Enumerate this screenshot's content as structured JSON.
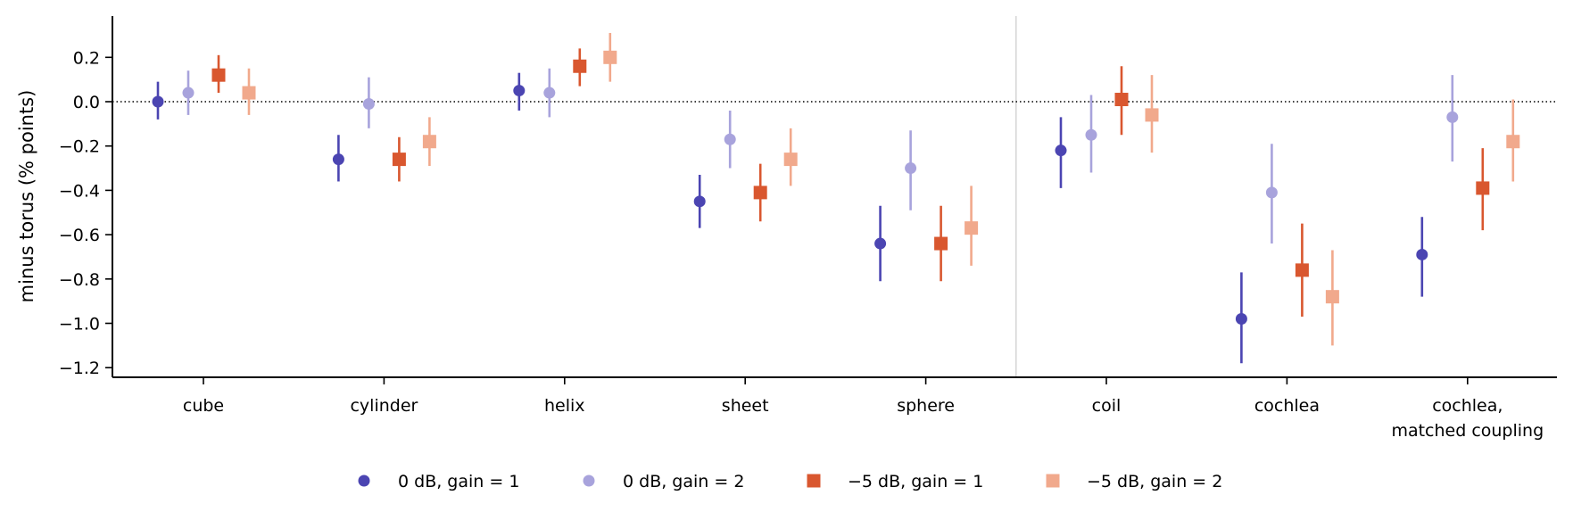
{
  "chart_data": {
    "type": "scatter",
    "title": "",
    "xlabel": "",
    "ylabel": "minus torus (% points)",
    "ylim": [
      -1.24,
      0.38
    ],
    "yticks": [
      -1.2,
      -1.0,
      -0.8,
      -0.6,
      -0.4,
      -0.2,
      0.0,
      0.2
    ],
    "ytick_labels": [
      "−1.2",
      "−1.0",
      "−0.8",
      "−0.6",
      "−0.4",
      "−0.2",
      "0.0",
      "0.2"
    ],
    "categories": [
      "cube",
      "cylinder",
      "helix",
      "sheet",
      "sphere",
      "coil",
      "cochlea",
      "cochlea,\nmatched coupling"
    ],
    "reference_line": 0.0,
    "group_divider_after": "sphere",
    "grid": false,
    "legend_position": "bottom",
    "error_bars": true,
    "series": [
      {
        "name": "0 dB, gain = 1",
        "marker": "circle",
        "color": "#4B45B2",
        "values": [
          0.0,
          -0.26,
          0.05,
          -0.45,
          -0.64,
          -0.22,
          -0.98,
          -0.69
        ],
        "lower": [
          -0.08,
          -0.36,
          -0.04,
          -0.57,
          -0.81,
          -0.39,
          -1.18,
          -0.88
        ],
        "upper": [
          0.09,
          -0.15,
          0.13,
          -0.33,
          -0.47,
          -0.07,
          -0.77,
          -0.52
        ]
      },
      {
        "name": "0 dB, gain = 2",
        "marker": "circle",
        "color": "#A8A3DC",
        "values": [
          0.04,
          -0.01,
          0.04,
          -0.17,
          -0.3,
          -0.15,
          -0.41,
          -0.07
        ],
        "lower": [
          -0.06,
          -0.12,
          -0.07,
          -0.3,
          -0.49,
          -0.32,
          -0.64,
          -0.27
        ],
        "upper": [
          0.14,
          0.11,
          0.15,
          -0.04,
          -0.13,
          0.03,
          -0.19,
          0.12
        ]
      },
      {
        "name": "−5 dB, gain = 1",
        "marker": "square",
        "color": "#D9572F",
        "values": [
          0.12,
          -0.26,
          0.16,
          -0.41,
          -0.64,
          0.01,
          -0.76,
          -0.39
        ],
        "lower": [
          0.04,
          -0.36,
          0.07,
          -0.54,
          -0.81,
          -0.15,
          -0.97,
          -0.58
        ],
        "upper": [
          0.21,
          -0.16,
          0.24,
          -0.28,
          -0.47,
          0.16,
          -0.55,
          -0.21
        ]
      },
      {
        "name": "−5 dB, gain = 2",
        "marker": "square",
        "color": "#F1A98C",
        "values": [
          0.04,
          -0.18,
          0.2,
          -0.26,
          -0.57,
          -0.06,
          -0.88,
          -0.18
        ],
        "lower": [
          -0.06,
          -0.29,
          0.09,
          -0.38,
          -0.74,
          -0.23,
          -1.1,
          -0.36
        ],
        "upper": [
          0.15,
          -0.07,
          0.31,
          -0.12,
          -0.38,
          0.12,
          -0.67,
          0.01
        ]
      }
    ]
  }
}
